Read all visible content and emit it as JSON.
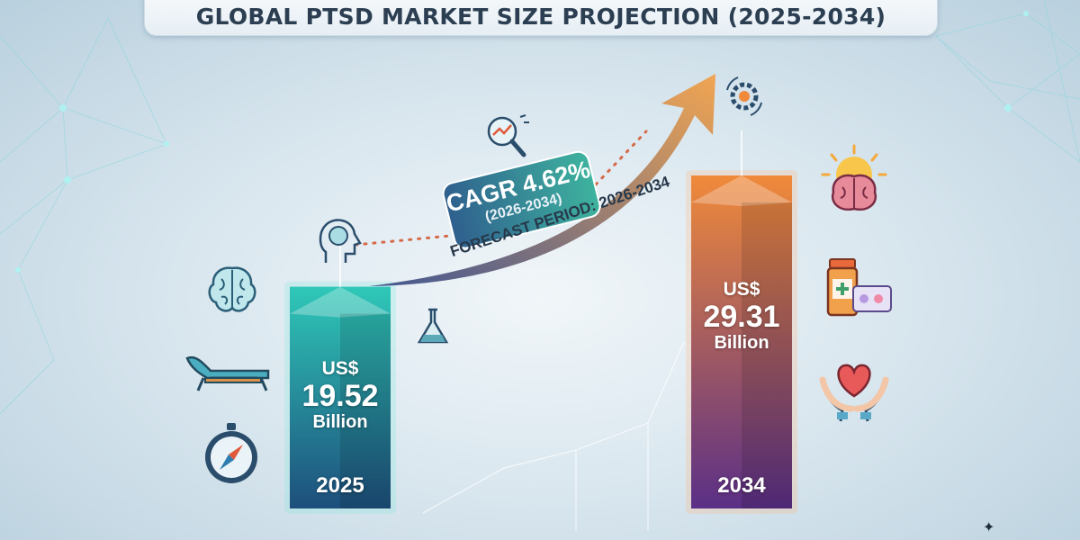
{
  "title": "GLOBAL PTSD MARKET SIZE PROJECTION (2025-2034)",
  "chart_data": {
    "type": "bar",
    "title": "GLOBAL PTSD MARKET SIZE PROJECTION (2025-2034)",
    "categories": [
      "2025",
      "2034"
    ],
    "series": [
      {
        "values": [
          19.52,
          29.31
        ]
      }
    ],
    "value_labels": [
      {
        "prefix": "US$",
        "value": "19.52",
        "unit": "Billion"
      },
      {
        "prefix": "US$",
        "value": "29.31",
        "unit": "Billion"
      }
    ],
    "annotations": {
      "cagr_label": "CAGR 4.62%",
      "cagr_period": "(2026-2034)",
      "forecast_label": "FORECAST PERIOD: 2026-2034"
    },
    "colors": {
      "bar_2025_top": "#2fc8b8",
      "bar_2025_bottom": "#1d4f7c",
      "bar_2034_top": "#f08a3a",
      "bar_2034_bottom": "#5a2f86",
      "arrow_start": "#3a4f8c",
      "arrow_end": "#f3a24a"
    },
    "grid": false,
    "legend": "none"
  },
  "icons": {
    "left": [
      "brain-icon",
      "therapy-couch-icon",
      "compass-icon"
    ],
    "right": [
      "sun-brain-icon",
      "medication-icon",
      "heart-hands-icon"
    ],
    "near_arrow": [
      "head-brain-icon",
      "magnifier-chart-icon",
      "lab-flask-icon",
      "gear-icon"
    ]
  }
}
